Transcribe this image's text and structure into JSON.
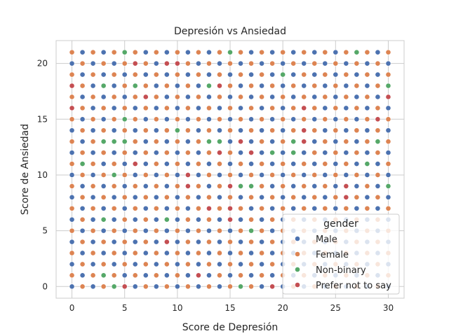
{
  "chart_data": {
    "type": "scatter",
    "title": "Depresión vs Ansiedad",
    "xlabel": "Score de Depresión",
    "ylabel": "Score de Ansiedad",
    "xlim": [
      -1.5,
      31.5
    ],
    "ylim": [
      -1.05,
      22.05
    ],
    "xticks": [
      0,
      5,
      10,
      15,
      20,
      25,
      30
    ],
    "yticks": [
      0,
      5,
      10,
      15,
      20
    ],
    "grid": true,
    "legend": {
      "title": "gender",
      "placement": "lower-right"
    },
    "series": [
      {
        "name": "Male",
        "color": "#4c72b0"
      },
      {
        "name": "Female",
        "color": "#dd8452"
      },
      {
        "name": "Non-binary",
        "color": "#55a868"
      },
      {
        "name": "Prefer not to say",
        "color": "#c44e52"
      }
    ],
    "x_range": [
      0,
      30
    ],
    "y_range": [
      0,
      21
    ],
    "base_pattern": "alternating Male/Female by (x + y) parity",
    "points_override": [
      {
        "x": 5,
        "y": 21,
        "series": "Non-binary"
      },
      {
        "x": 15,
        "y": 21,
        "series": "Non-binary"
      },
      {
        "x": 27,
        "y": 21,
        "series": "Non-binary"
      },
      {
        "x": 6,
        "y": 20,
        "series": "Prefer not to say"
      },
      {
        "x": 9,
        "y": 20,
        "series": "Prefer not to say"
      },
      {
        "x": 10,
        "y": 20,
        "series": "Prefer not to say"
      },
      {
        "x": 20,
        "y": 19,
        "series": "Non-binary"
      },
      {
        "x": 30,
        "y": 18,
        "series": "Non-binary"
      },
      {
        "x": 0,
        "y": 18,
        "series": "Prefer not to say"
      },
      {
        "x": 3,
        "y": 18,
        "series": "Non-binary"
      },
      {
        "x": 6,
        "y": 18,
        "series": "Non-binary"
      },
      {
        "x": 13,
        "y": 18,
        "series": "Non-binary"
      },
      {
        "x": 14,
        "y": 18,
        "series": "Prefer not to say"
      },
      {
        "x": 7,
        "y": 17,
        "series": "Prefer not to say"
      },
      {
        "x": 30,
        "y": 17,
        "series": "Prefer not to say"
      },
      {
        "x": 0,
        "y": 16,
        "series": "Prefer not to say"
      },
      {
        "x": 22,
        "y": 16,
        "series": "Prefer not to say"
      },
      {
        "x": 5,
        "y": 15,
        "series": "Non-binary"
      },
      {
        "x": 29,
        "y": 15,
        "series": "Prefer not to say"
      },
      {
        "x": 10,
        "y": 14,
        "series": "Non-binary"
      },
      {
        "x": 22,
        "y": 14,
        "series": "Prefer not to say"
      },
      {
        "x": 3,
        "y": 13,
        "series": "Non-binary"
      },
      {
        "x": 4,
        "y": 13,
        "series": "Non-binary"
      },
      {
        "x": 5,
        "y": 13,
        "series": "Non-binary"
      },
      {
        "x": 13,
        "y": 13,
        "series": "Non-binary"
      },
      {
        "x": 14,
        "y": 13,
        "series": "Non-binary"
      },
      {
        "x": 16,
        "y": 13,
        "series": "Prefer not to say"
      },
      {
        "x": 21,
        "y": 13,
        "series": "Non-binary"
      },
      {
        "x": 22,
        "y": 13,
        "series": "Prefer not to say"
      },
      {
        "x": 29,
        "y": 13,
        "series": "Non-binary"
      },
      {
        "x": 14,
        "y": 12,
        "series": "Prefer not to say"
      },
      {
        "x": 17,
        "y": 12,
        "series": "Prefer not to say"
      },
      {
        "x": 19,
        "y": 12,
        "series": "Non-binary"
      },
      {
        "x": 21,
        "y": 12,
        "series": "Non-binary"
      },
      {
        "x": 1,
        "y": 11,
        "series": "Non-binary"
      },
      {
        "x": 6,
        "y": 11,
        "series": "Prefer not to say"
      },
      {
        "x": 28,
        "y": 11,
        "series": "Non-binary"
      },
      {
        "x": 4,
        "y": 10,
        "series": "Non-binary"
      },
      {
        "x": 11,
        "y": 10,
        "series": "Prefer not to say"
      },
      {
        "x": 11,
        "y": 9,
        "series": "Prefer not to say"
      },
      {
        "x": 15,
        "y": 9,
        "series": "Prefer not to say"
      },
      {
        "x": 16,
        "y": 9,
        "series": "Non-binary"
      },
      {
        "x": 17,
        "y": 9,
        "series": "Non-binary"
      },
      {
        "x": 26,
        "y": 9,
        "series": "Prefer not to say"
      },
      {
        "x": 30,
        "y": 9,
        "series": "Non-binary"
      },
      {
        "x": 26,
        "y": 8,
        "series": "Prefer not to say"
      },
      {
        "x": 13,
        "y": 7,
        "series": "Prefer not to say"
      },
      {
        "x": 15,
        "y": 7,
        "series": "Prefer not to say"
      },
      {
        "x": 3,
        "y": 6,
        "series": "Non-binary"
      },
      {
        "x": 9,
        "y": 6,
        "series": "Non-binary"
      },
      {
        "x": 15,
        "y": 6,
        "series": "Prefer not to say"
      },
      {
        "x": 17,
        "y": 5,
        "series": "Non-binary"
      },
      {
        "x": 9,
        "y": 4,
        "series": "Prefer not to say"
      },
      {
        "x": 3,
        "y": 1,
        "series": "Non-binary"
      },
      {
        "x": 12,
        "y": 1,
        "series": "Prefer not to say"
      },
      {
        "x": 4,
        "y": 0,
        "series": "Non-binary"
      },
      {
        "x": 5,
        "y": 0,
        "series": "Prefer not to say"
      },
      {
        "x": 16,
        "y": 0,
        "series": "Non-binary"
      },
      {
        "x": 19,
        "y": 0,
        "series": "Prefer not to say"
      }
    ]
  }
}
